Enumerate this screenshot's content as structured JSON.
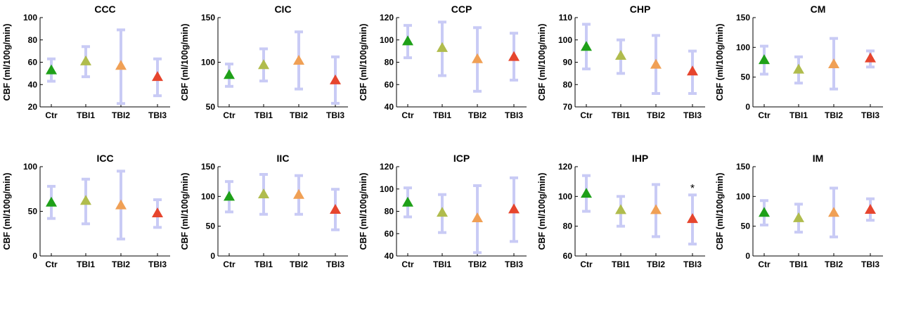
{
  "chart_data": [
    {
      "type": "scatter",
      "title": "CCC",
      "ylabel": "CBF (ml/100g/min)",
      "categories": [
        "Ctr",
        "TBI1",
        "TBI2",
        "TBI3"
      ],
      "ylim": [
        20,
        100
      ],
      "yticks": [
        20,
        40,
        60,
        80,
        100
      ],
      "means": [
        53,
        61,
        57,
        47
      ],
      "lower": [
        43,
        47,
        23,
        30
      ],
      "upper": [
        63,
        74,
        89,
        63
      ],
      "annotations": []
    },
    {
      "type": "scatter",
      "title": "CIC",
      "ylabel": "CBF (ml/100g/min)",
      "categories": [
        "Ctr",
        "TBI1",
        "TBI2",
        "TBI3"
      ],
      "ylim": [
        50,
        150
      ],
      "yticks": [
        50,
        100,
        150
      ],
      "means": [
        86,
        97,
        102,
        80
      ],
      "lower": [
        73,
        79,
        70,
        54
      ],
      "upper": [
        98,
        115,
        134,
        106
      ],
      "annotations": []
    },
    {
      "type": "scatter",
      "title": "CCP",
      "ylabel": "CBF (ml/100g/min)",
      "categories": [
        "Ctr",
        "TBI1",
        "TBI2",
        "TBI3"
      ],
      "ylim": [
        40,
        120
      ],
      "yticks": [
        40,
        60,
        80,
        100,
        120
      ],
      "means": [
        99,
        93,
        83,
        85
      ],
      "lower": [
        84,
        68,
        54,
        64
      ],
      "upper": [
        113,
        116,
        111,
        106
      ],
      "annotations": []
    },
    {
      "type": "scatter",
      "title": "CHP",
      "ylabel": "CBF (ml/100g/min)",
      "categories": [
        "Ctr",
        "TBI1",
        "TBI2",
        "TBI3"
      ],
      "ylim": [
        70,
        110
      ],
      "yticks": [
        70,
        80,
        90,
        100,
        110
      ],
      "means": [
        97,
        93,
        89,
        86
      ],
      "lower": [
        87,
        85,
        76,
        76
      ],
      "upper": [
        107,
        100,
        102,
        95
      ],
      "annotations": []
    },
    {
      "type": "scatter",
      "title": "CM",
      "ylabel": "CBF (ml/100g/min)",
      "categories": [
        "Ctr",
        "TBI1",
        "TBI2",
        "TBI3"
      ],
      "ylim": [
        0,
        150
      ],
      "yticks": [
        0,
        50,
        100,
        150
      ],
      "means": [
        79,
        63,
        72,
        82
      ],
      "lower": [
        55,
        40,
        30,
        67
      ],
      "upper": [
        102,
        84,
        115,
        94
      ],
      "annotations": []
    },
    {
      "type": "scatter",
      "title": "ICC",
      "ylabel": "CBF (ml/100g/min)",
      "categories": [
        "Ctr",
        "TBI1",
        "TBI2",
        "TBI3"
      ],
      "ylim": [
        0,
        100
      ],
      "yticks": [
        0,
        50,
        100
      ],
      "means": [
        60,
        62,
        57,
        48
      ],
      "lower": [
        42,
        36,
        19,
        32
      ],
      "upper": [
        78,
        86,
        95,
        63
      ],
      "annotations": []
    },
    {
      "type": "scatter",
      "title": "IIC",
      "ylabel": "CBF (ml/100g/min)",
      "categories": [
        "Ctr",
        "TBI1",
        "TBI2",
        "TBI3"
      ],
      "ylim": [
        0,
        150
      ],
      "yticks": [
        0,
        50,
        100,
        150
      ],
      "means": [
        100,
        104,
        103,
        78
      ],
      "lower": [
        74,
        70,
        70,
        44
      ],
      "upper": [
        125,
        137,
        135,
        112
      ],
      "annotations": []
    },
    {
      "type": "scatter",
      "title": "ICP",
      "ylabel": "CBF (ml/100g/min)",
      "categories": [
        "Ctr",
        "TBI1",
        "TBI2",
        "TBI3"
      ],
      "ylim": [
        40,
        120
      ],
      "yticks": [
        40,
        60,
        80,
        100,
        120
      ],
      "means": [
        88,
        79,
        74,
        82
      ],
      "lower": [
        75,
        61,
        43,
        53
      ],
      "upper": [
        101,
        95,
        103,
        110
      ],
      "annotations": []
    },
    {
      "type": "scatter",
      "title": "IHP",
      "ylabel": "CBF (ml/100g/min)",
      "categories": [
        "Ctr",
        "TBI1",
        "TBI2",
        "TBI3"
      ],
      "ylim": [
        60,
        120
      ],
      "yticks": [
        60,
        80,
        100,
        120
      ],
      "means": [
        102,
        91,
        91,
        85
      ],
      "lower": [
        90,
        80,
        73,
        68
      ],
      "upper": [
        114,
        100,
        108,
        101
      ],
      "annotations": [
        {
          "category": "TBI3",
          "text": "*"
        }
      ]
    },
    {
      "type": "scatter",
      "title": "IM",
      "ylabel": "CBF (ml/100g/min)",
      "categories": [
        "Ctr",
        "TBI1",
        "TBI2",
        "TBI3"
      ],
      "ylim": [
        0,
        150
      ],
      "yticks": [
        0,
        50,
        100,
        150
      ],
      "means": [
        73,
        64,
        73,
        78
      ],
      "lower": [
        52,
        40,
        32,
        60
      ],
      "upper": [
        93,
        87,
        114,
        96
      ],
      "annotations": []
    }
  ],
  "colors": {
    "Ctr": "#1fa019",
    "TBI1": "#b0bc4d",
    "TBI2": "#f0a055",
    "TBI3": "#e6452e",
    "errorbar": "#c9cbf5",
    "axis": "#000000"
  }
}
